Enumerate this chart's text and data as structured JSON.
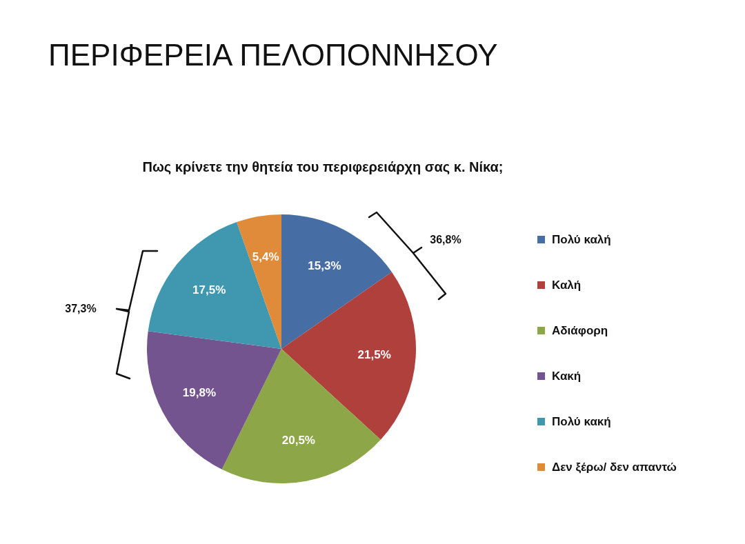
{
  "chart_data": {
    "type": "pie",
    "title": "ΠΕΡΙΦΕΡΕΙΑ ΠΕΛΟΠΟΝΝΗΣΟΥ",
    "subtitle": "Πως κρίνετε την θητεία του περιφερειάρχη σας κ. Νίκα;",
    "categories": [
      "Πολύ καλή",
      "Καλή",
      "Αδιάφορη",
      "Κακή",
      "Πολύ κακή",
      "Δεν ξέρω/ δεν απαντώ"
    ],
    "values": [
      15.3,
      21.5,
      20.5,
      19.8,
      17.5,
      5.4
    ],
    "colors": [
      "#466ea5",
      "#b0403c",
      "#8da748",
      "#74548f",
      "#3f97b0",
      "#e08b39"
    ],
    "value_labels": [
      "15,3%",
      "21,5%",
      "20,5%",
      "19,8%",
      "17,5%",
      "5,4%"
    ],
    "legend": "right",
    "annotations": [
      "36,8%",
      "37,3%"
    ]
  }
}
